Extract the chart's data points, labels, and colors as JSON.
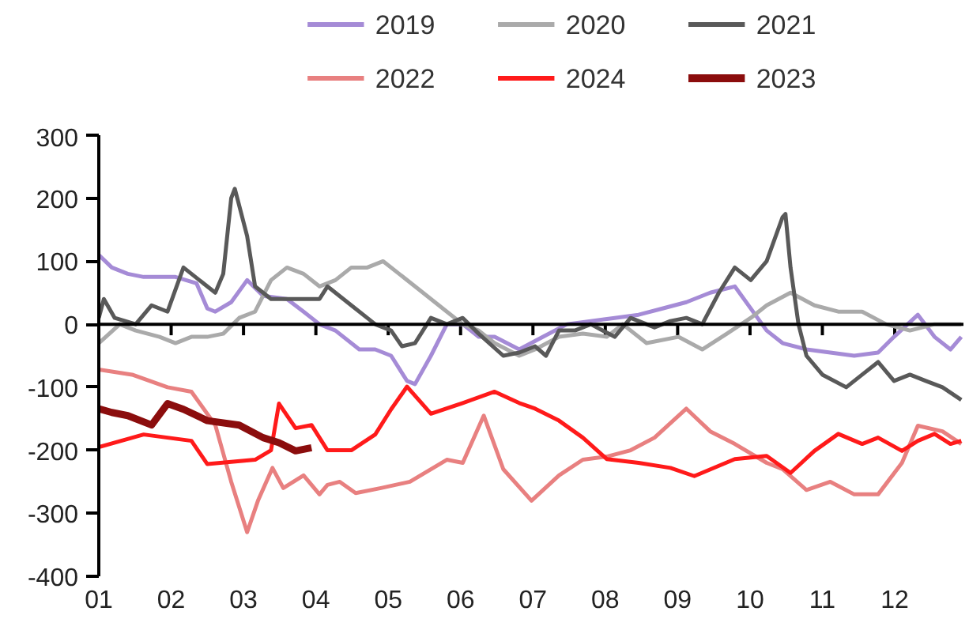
{
  "chart_data": {
    "type": "line",
    "xlim": [
      1,
      12.95
    ],
    "ylim": [
      -400,
      300
    ],
    "xticks": [
      {
        "value": 1,
        "label": "01"
      },
      {
        "value": 2,
        "label": "02"
      },
      {
        "value": 3,
        "label": "03"
      },
      {
        "value": 4,
        "label": "04"
      },
      {
        "value": 5,
        "label": "05"
      },
      {
        "value": 6,
        "label": "06"
      },
      {
        "value": 7,
        "label": "07"
      },
      {
        "value": 8,
        "label": "08"
      },
      {
        "value": 9,
        "label": "09"
      },
      {
        "value": 10,
        "label": "10"
      },
      {
        "value": 11,
        "label": "11"
      },
      {
        "value": 12,
        "label": "12"
      }
    ],
    "yticks": [
      -400,
      -300,
      -200,
      -100,
      0,
      100,
      200,
      300
    ],
    "grid": false,
    "ref_lines": [
      {
        "axis": "y",
        "value": 0,
        "color": "#000000"
      }
    ],
    "legend": "top",
    "marker": "none",
    "line_style": "solid",
    "series": [
      {
        "name": "2019",
        "color": "#a58bd6",
        "x": [
          1.0,
          1.18,
          1.4,
          1.62,
          1.84,
          2.06,
          2.35,
          2.5,
          2.61,
          2.83,
          3.05,
          3.27,
          3.6,
          3.83,
          4.05,
          4.27,
          4.6,
          4.82,
          5.04,
          5.26,
          5.37,
          5.59,
          5.81,
          6.03,
          6.25,
          6.47,
          6.81,
          7.14,
          7.47,
          7.8,
          8.13,
          8.46,
          8.79,
          9.12,
          9.45,
          9.79,
          10.23,
          10.45,
          10.78,
          11.11,
          11.44,
          11.77,
          11.99,
          12.32,
          12.55,
          12.77,
          12.92
        ],
        "values": [
          110,
          90,
          80,
          75,
          75,
          75,
          65,
          25,
          20,
          35,
          70,
          45,
          40,
          20,
          0,
          -10,
          -40,
          -40,
          -50,
          -90,
          -95,
          -50,
          0,
          0,
          -20,
          -20,
          -40,
          -20,
          0,
          5,
          10,
          15,
          25,
          35,
          50,
          60,
          -10,
          -30,
          -40,
          -45,
          -50,
          -45,
          -20,
          15,
          -20,
          -40,
          -20
        ]
      },
      {
        "name": "2020",
        "color": "#aaaaaa",
        "x": [
          1.0,
          1.29,
          1.51,
          1.84,
          2.06,
          2.28,
          2.5,
          2.72,
          2.94,
          3.16,
          3.38,
          3.6,
          3.83,
          4.05,
          4.27,
          4.49,
          4.71,
          4.93,
          5.15,
          5.37,
          5.59,
          5.81,
          6.03,
          6.25,
          6.47,
          6.81,
          7.03,
          7.36,
          7.69,
          8.02,
          8.24,
          8.57,
          9.01,
          9.34,
          9.68,
          10.01,
          10.23,
          10.56,
          10.89,
          11.22,
          11.55,
          11.88,
          12.21,
          12.55,
          12.92
        ],
        "values": [
          -30,
          0,
          -10,
          -20,
          -30,
          -20,
          -20,
          -15,
          10,
          20,
          70,
          90,
          80,
          60,
          70,
          90,
          90,
          100,
          80,
          60,
          40,
          20,
          0,
          -10,
          -30,
          -50,
          -40,
          -20,
          -15,
          -20,
          0,
          -30,
          -20,
          -40,
          -15,
          10,
          30,
          50,
          30,
          20,
          20,
          0,
          -10,
          0,
          0
        ]
      },
      {
        "name": "2021",
        "color": "#595959",
        "x": [
          1.0,
          1.07,
          1.22,
          1.51,
          1.73,
          1.95,
          2.17,
          2.39,
          2.61,
          2.72,
          2.83,
          2.88,
          3.05,
          3.16,
          3.38,
          3.72,
          4.05,
          4.16,
          4.49,
          4.82,
          5.04,
          5.19,
          5.37,
          5.59,
          5.81,
          6.03,
          6.25,
          6.59,
          6.81,
          7.03,
          7.18,
          7.36,
          7.58,
          7.8,
          8.13,
          8.35,
          8.68,
          8.9,
          9.12,
          9.34,
          9.57,
          9.79,
          10.01,
          10.23,
          10.45,
          10.49,
          10.56,
          10.67,
          10.78,
          11.0,
          11.33,
          11.55,
          11.77,
          11.99,
          12.21,
          12.43,
          12.66,
          12.92
        ],
        "values": [
          10,
          40,
          10,
          0,
          30,
          20,
          90,
          70,
          50,
          80,
          200,
          215,
          140,
          60,
          40,
          40,
          40,
          60,
          30,
          0,
          -10,
          -35,
          -30,
          10,
          0,
          10,
          -15,
          -50,
          -45,
          -35,
          -50,
          -10,
          -10,
          0,
          -20,
          10,
          -5,
          5,
          10,
          0,
          50,
          90,
          70,
          100,
          170,
          175,
          90,
          0,
          -50,
          -80,
          -100,
          -80,
          -60,
          -90,
          -80,
          -90,
          -100,
          -120
        ]
      },
      {
        "name": "2022",
        "color": "#e88080",
        "x": [
          1.0,
          1.46,
          1.95,
          2.28,
          2.61,
          2.83,
          3.05,
          3.2,
          3.4,
          3.55,
          3.83,
          4.05,
          4.16,
          4.33,
          4.55,
          4.9,
          5.3,
          5.81,
          6.03,
          6.32,
          6.59,
          6.98,
          7.36,
          7.69,
          8.02,
          8.35,
          8.68,
          9.12,
          9.45,
          9.79,
          10.23,
          10.45,
          10.78,
          11.11,
          11.44,
          11.77,
          12.1,
          12.32,
          12.66,
          12.92
        ],
        "values": [
          -72,
          -80,
          -100,
          -107,
          -160,
          -250,
          -330,
          -280,
          -228,
          -260,
          -240,
          -270,
          -255,
          -250,
          -268,
          -260,
          -250,
          -215,
          -220,
          -145,
          -230,
          -280,
          -240,
          -215,
          -210,
          -200,
          -180,
          -134,
          -170,
          -190,
          -220,
          -230,
          -263,
          -250,
          -270,
          -270,
          -220,
          -161,
          -170,
          -190
        ]
      },
      {
        "name": "2024",
        "color": "#ff1a1a",
        "x": [
          1.0,
          1.62,
          2.28,
          2.5,
          3.16,
          3.38,
          3.49,
          3.72,
          3.94,
          4.16,
          4.49,
          4.82,
          5.04,
          5.26,
          5.59,
          6.03,
          6.47,
          6.81,
          7.03,
          7.36,
          7.69,
          8.02,
          8.46,
          8.9,
          9.23,
          9.79,
          10.23,
          10.56,
          10.89,
          11.22,
          11.55,
          11.77,
          12.1,
          12.32,
          12.55,
          12.77,
          12.92
        ],
        "values": [
          -195,
          -175,
          -185,
          -222,
          -215,
          -200,
          -126,
          -165,
          -160,
          -200,
          -200,
          -175,
          -135,
          -99,
          -142,
          -125,
          -107,
          -125,
          -134,
          -153,
          -180,
          -214,
          -220,
          -228,
          -241,
          -214,
          -209,
          -236,
          -201,
          -174,
          -190,
          -180,
          -201,
          -185,
          -174,
          -190,
          -185
        ]
      },
      {
        "name": "2023",
        "color": "#8b0d0d",
        "x": [
          1.0,
          1.18,
          1.4,
          1.73,
          1.95,
          2.17,
          2.5,
          2.94,
          3.27,
          3.49,
          3.72,
          3.94
        ],
        "values": [
          -134,
          -140,
          -145,
          -160,
          -126,
          -135,
          -153,
          -160,
          -180,
          -188,
          -201,
          -196
        ]
      }
    ]
  }
}
